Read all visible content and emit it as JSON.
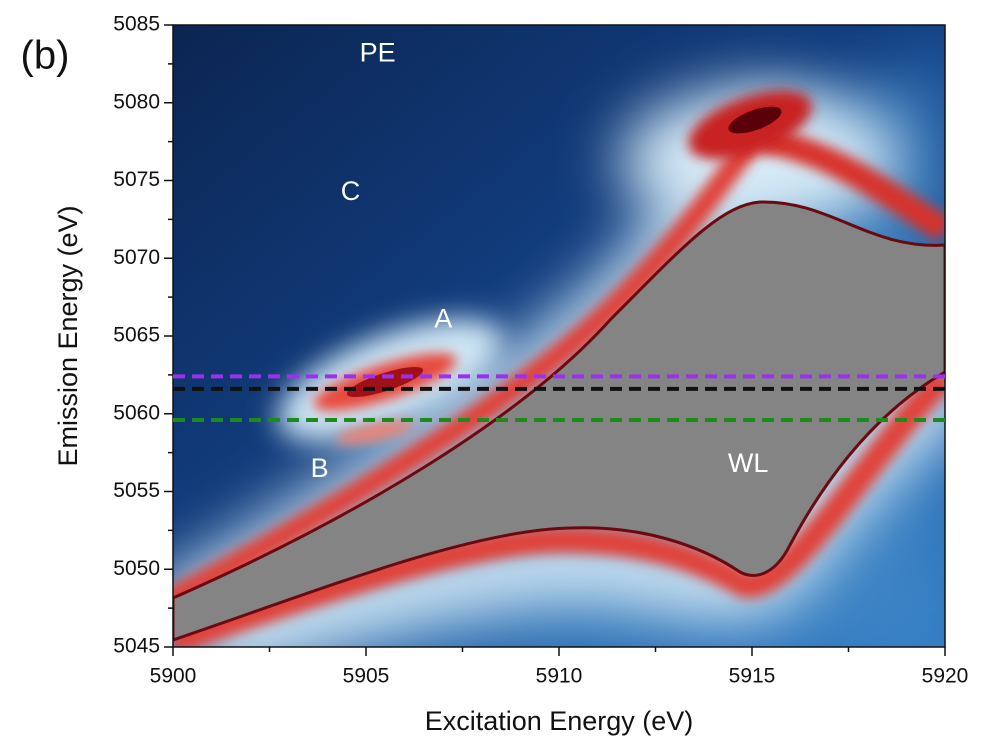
{
  "chart_data": {
    "type": "contour",
    "panel_label": "(b)",
    "xlabel": "Excitation Energy (eV)",
    "ylabel": "Emission Energy (eV)",
    "xlim": [
      5900,
      5920
    ],
    "ylim": [
      5045,
      5085
    ],
    "xticks": [
      5900,
      5905,
      5910,
      5915,
      5920
    ],
    "yticks": [
      5045,
      5050,
      5055,
      5060,
      5065,
      5070,
      5075,
      5080,
      5085
    ],
    "xminorticks": [
      5902.5,
      5907.5,
      5912.5,
      5917.5
    ],
    "yminorticks": [
      5047.5,
      5052.5,
      5057.5,
      5062.5,
      5067.5,
      5072.5,
      5077.5,
      5082.5
    ],
    "hlines": [
      {
        "y": 5062.4,
        "color": "#9b30f0"
      },
      {
        "y": 5061.6,
        "color": "#111111"
      },
      {
        "y": 5059.6,
        "color": "#1e8a1e"
      }
    ],
    "annotations": [
      {
        "text": "PE",
        "x": 5905.3,
        "y": 5083.1,
        "color": "#ffffff"
      },
      {
        "text": "C",
        "x": 5904.6,
        "y": 5074.2,
        "color": "#ffffff"
      },
      {
        "text": "A",
        "x": 5907.0,
        "y": 5066.0,
        "color": "#ffffff"
      },
      {
        "text": "B",
        "x": 5903.8,
        "y": 5056.4,
        "color": "#ffffff"
      },
      {
        "text": "WL",
        "x": 5914.9,
        "y": 5056.7,
        "color": "#ffffff"
      }
    ]
  }
}
